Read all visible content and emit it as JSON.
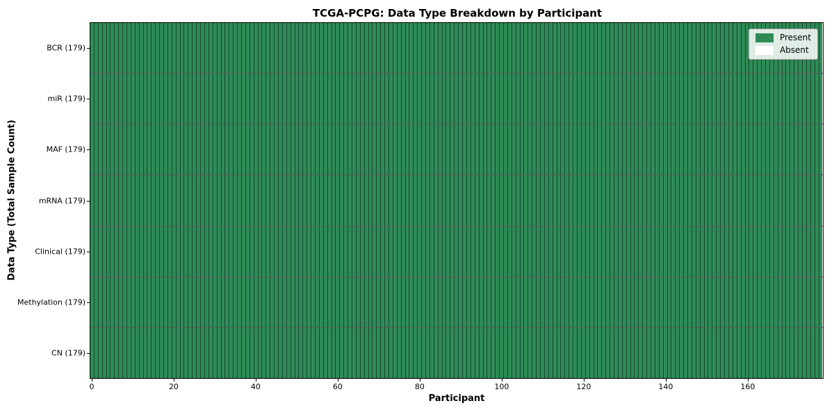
{
  "chart_data": {
    "type": "heatmap",
    "title": "TCGA-PCPG: Data Type Breakdown by Participant",
    "xlabel": "Participant",
    "ylabel": "Data Type (Total Sample Count)",
    "n_participants": 179,
    "x_range": [
      -0.5,
      178.5
    ],
    "x_ticks": [
      0,
      20,
      40,
      60,
      80,
      100,
      120,
      140,
      160
    ],
    "grid": false,
    "rows": [
      {
        "data_type": "BCR",
        "label": "BCR (179)",
        "total_samples": 179,
        "present_count": 179,
        "absent_count": 0
      },
      {
        "data_type": "miR",
        "label": "miR (179)",
        "total_samples": 179,
        "present_count": 179,
        "absent_count": 0
      },
      {
        "data_type": "MAF",
        "label": "MAF (179)",
        "total_samples": 179,
        "present_count": 179,
        "absent_count": 0
      },
      {
        "data_type": "mRNA",
        "label": "mRNA (179)",
        "total_samples": 179,
        "present_count": 179,
        "absent_count": 0
      },
      {
        "data_type": "Clinical",
        "label": "Clinical (179)",
        "total_samples": 179,
        "present_count": 179,
        "absent_count": 0
      },
      {
        "data_type": "Methylation",
        "label": "Methylation (179)",
        "total_samples": 179,
        "present_count": 179,
        "absent_count": 0
      },
      {
        "data_type": "CN",
        "label": "CN (179)",
        "total_samples": 179,
        "present_count": 179,
        "absent_count": 0
      }
    ],
    "legend": {
      "position": "upper right",
      "items": [
        {
          "label": "Present",
          "color": "#2e8b57"
        },
        {
          "label": "Absent",
          "color": "#ffffff"
        }
      ]
    },
    "colors": {
      "present": "#2e8b57",
      "absent": "#ffffff",
      "cell_edge": "#000000",
      "spine": "#000000"
    }
  }
}
